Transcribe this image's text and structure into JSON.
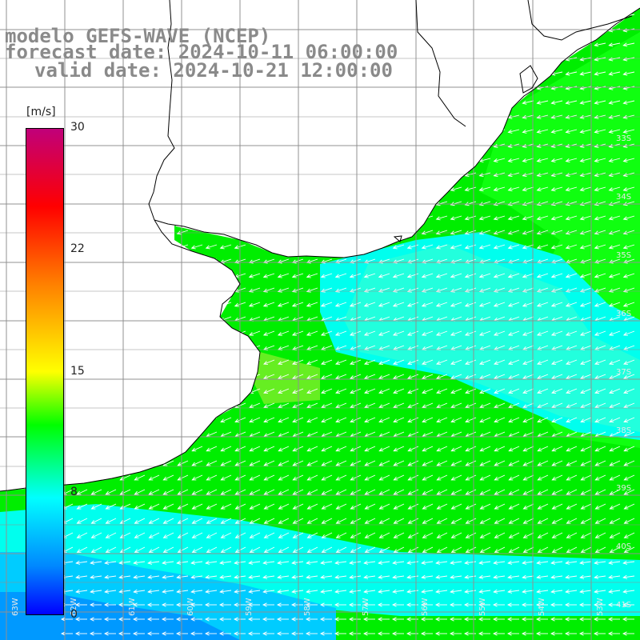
{
  "title": {
    "line1": "modelo GEFS-WAVE (NCEP)",
    "line2": "forecast date: 2024-10-11 06:00:00",
    "line3": "valid date: 2024-10-21 12:00:00"
  },
  "colorbar": {
    "unit": "[m/s]",
    "ticks": [
      "30",
      "22",
      "15",
      "8",
      "0"
    ],
    "min": 0,
    "max": 30,
    "colors": [
      "#0000ff",
      "#0088ff",
      "#00ffff",
      "#00ff00",
      "#ffff00",
      "#ff8000",
      "#ff0000",
      "#c0007a"
    ]
  },
  "map": {
    "variable": "wind speed",
    "arrow_color": "#ffffff",
    "coast_color": "#000000",
    "grid_color": "#909090",
    "lat_labels": [
      "33S",
      "34S",
      "35S",
      "36S",
      "37S",
      "38S",
      "39S",
      "40S",
      "41S"
    ],
    "lon_labels": [
      "63W",
      "62W",
      "61W",
      "60W",
      "59W",
      "58W",
      "57W",
      "56W",
      "55W",
      "54W",
      "53W"
    ],
    "wind_direction": "from east / south-east",
    "field_colors": {
      "nearshore_green": "#00ee00",
      "bright_green": "#10ff10",
      "yellow_green": "#66ee22",
      "cyan": "#00ffee",
      "light_cyan": "#22ffdd",
      "sky_blue": "#00ccff",
      "blue": "#0099ff"
    }
  }
}
